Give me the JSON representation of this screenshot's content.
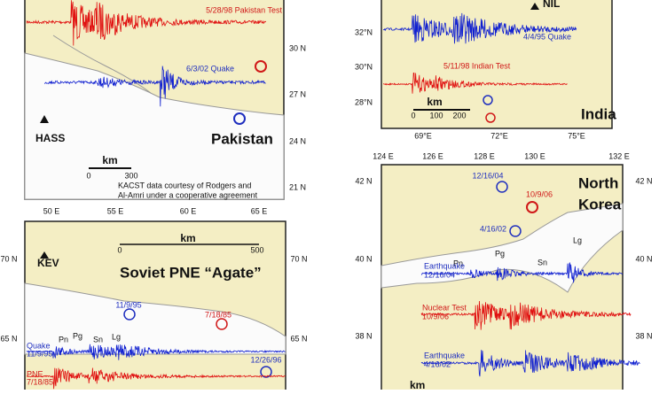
{
  "pakistan": {
    "traces": [
      "5/28/98 Pakistan Test",
      "6/3/02 Quake"
    ],
    "station": "HASS",
    "region": "Pakistan",
    "scale_unit": "km",
    "scale_ticks": [
      "0",
      "300"
    ],
    "credit": [
      "KACST data courtesy of Rodgers and",
      "Al-Amri under a cooperative agreement"
    ],
    "lat_labels": [
      "30 N",
      "27 N",
      "24 N",
      "21 N"
    ],
    "lon_labels": [
      "50 E",
      "55 E",
      "60 E",
      "65 E"
    ]
  },
  "india": {
    "station": "NIL",
    "traces": [
      "4/4/95 Quake",
      "5/11/98 Indian Test"
    ],
    "scale_unit": "km",
    "scale_ticks": [
      "0",
      "100",
      "200"
    ],
    "region": "India",
    "lat_labels": [
      "32°N",
      "30°N",
      "28°N"
    ],
    "lon_labels": [
      "69°E",
      "72°E",
      "75°E"
    ]
  },
  "soviet": {
    "scale_unit": "km",
    "scale_ticks": [
      "0",
      "500"
    ],
    "station": "KEV",
    "lat_labels": [
      "70 N",
      "65 N"
    ],
    "title": "Soviet PNE “Agate”",
    "events": [
      "11/9/95",
      "7/18/85",
      "12/26/96"
    ],
    "phases": [
      "Pn",
      "Pg",
      "Sn",
      "Lg"
    ],
    "trace_labels": [
      [
        "Quake",
        "11/9/95"
      ],
      [
        "PNE",
        "7/18/85"
      ]
    ]
  },
  "korea": {
    "lon_labels": [
      "124 E",
      "126 E",
      "128 E",
      "130 E",
      "132 E"
    ],
    "lat_labels": [
      "42 N",
      "40 N",
      "38 N"
    ],
    "events": [
      "12/16/04",
      "10/9/06",
      "4/16/02"
    ],
    "region": [
      "North",
      "Korea"
    ],
    "phases": [
      "Pn",
      "Pg",
      "Sn",
      "Lg"
    ],
    "trace_labels": [
      [
        "Earthquake",
        "12/16/04"
      ],
      [
        "Nuclear Test",
        "10/9/06"
      ],
      [
        "Earthquake",
        "4/16/02"
      ]
    ],
    "scale_unit": "km"
  }
}
